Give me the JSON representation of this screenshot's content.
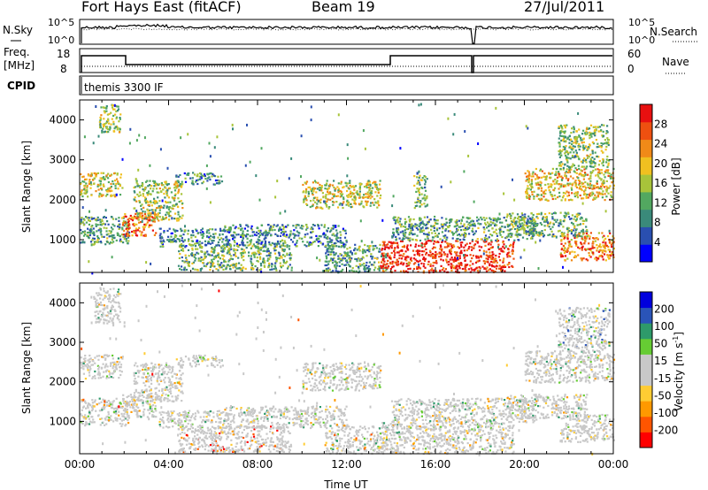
{
  "header": {
    "station": "Fort Hays East (fitACF)",
    "beam": "Beam 19",
    "date": "27/Jul/2011"
  },
  "panels": {
    "noise": {
      "left_label": "N.Sky",
      "right_label": "N.Search",
      "left_ticks": [
        "10^5",
        "10^0"
      ],
      "right_ticks": [
        "10^5",
        "10^0"
      ]
    },
    "freq": {
      "left_label_1": "Freq.",
      "left_label_2": "[MHz]",
      "left_ticks": [
        "18",
        "8"
      ],
      "right_label": "Nave",
      "right_ticks": [
        "60",
        "0"
      ]
    },
    "cpid": {
      "label": "CPID",
      "program": "themis 3300 IF"
    }
  },
  "colors": {
    "power": [
      "#0000ff",
      "#2a4fb0",
      "#3a8a7a",
      "#52a860",
      "#a8c43a",
      "#f0c020",
      "#f08a18",
      "#ee5010",
      "#e81010"
    ],
    "velocity": [
      "#ff0000",
      "#ff5500",
      "#ff9900",
      "#ffcc33",
      "#c8c8c8",
      "#c8c8c8",
      "#66cc33",
      "#2e9a6a",
      "#2a54b8",
      "#0000dd"
    ]
  },
  "chart_data": [
    {
      "type": "heatmap",
      "name": "power",
      "ylabel": "Slant Range [km]",
      "ylim": [
        180,
        4500
      ],
      "xlim": [
        0,
        24
      ],
      "yticks": [
        "1000",
        "2000",
        "3000",
        "4000"
      ],
      "colorbar": {
        "label": "Power [dB]",
        "ticks": [
          "4",
          "8",
          "12",
          "16",
          "20",
          "24",
          "28"
        ],
        "range": [
          0,
          32
        ]
      },
      "regions": [
        {
          "x": [
            0.0,
            2.2
          ],
          "y": [
            900,
            1600
          ],
          "level": 0.35
        },
        {
          "x": [
            0.0,
            1.9
          ],
          "y": [
            2100,
            2700
          ],
          "level": 0.55
        },
        {
          "x": [
            0.8,
            1.8
          ],
          "y": [
            3700,
            4400
          ],
          "level": 0.45
        },
        {
          "x": [
            1.9,
            3.4
          ],
          "y": [
            1100,
            1700
          ],
          "level": 0.8
        },
        {
          "x": [
            2.4,
            4.6
          ],
          "y": [
            1500,
            2500
          ],
          "level": 0.5
        },
        {
          "x": [
            3.5,
            6.5
          ],
          "y": [
            850,
            1300
          ],
          "level": 0.3
        },
        {
          "x": [
            4.3,
            6.4
          ],
          "y": [
            2400,
            2700
          ],
          "level": 0.3
        },
        {
          "x": [
            4.4,
            9.5
          ],
          "y": [
            250,
            900
          ],
          "level": 0.4
        },
        {
          "x": [
            6.5,
            12.0
          ],
          "y": [
            850,
            1400
          ],
          "level": 0.3
        },
        {
          "x": [
            10.0,
            13.5
          ],
          "y": [
            1800,
            2500
          ],
          "level": 0.55
        },
        {
          "x": [
            11.0,
            13.8
          ],
          "y": [
            200,
            900
          ],
          "level": 0.35
        },
        {
          "x": [
            13.5,
            19.5
          ],
          "y": [
            200,
            1000
          ],
          "level": 0.92
        },
        {
          "x": [
            14.0,
            20.5
          ],
          "y": [
            1000,
            1600
          ],
          "level": 0.35
        },
        {
          "x": [
            15.0,
            15.6
          ],
          "y": [
            1800,
            2700
          ],
          "level": 0.4
        },
        {
          "x": [
            19.2,
            22.8
          ],
          "y": [
            1100,
            1700
          ],
          "level": 0.4
        },
        {
          "x": [
            20.0,
            24.0
          ],
          "y": [
            2000,
            2800
          ],
          "level": 0.6
        },
        {
          "x": [
            21.5,
            23.8
          ],
          "y": [
            2800,
            3900
          ],
          "level": 0.45
        },
        {
          "x": [
            21.6,
            24.0
          ],
          "y": [
            500,
            1200
          ],
          "level": 0.75
        }
      ]
    },
    {
      "type": "heatmap",
      "name": "velocity",
      "ylabel": "Slant Range [km]",
      "ylim": [
        180,
        4500
      ],
      "xlim": [
        0,
        24
      ],
      "yticks": [
        "1000",
        "2000",
        "3000",
        "4000"
      ],
      "xlabel": "Time UT",
      "xticks": [
        "00:00",
        "04:00",
        "08:00",
        "12:00",
        "16:00",
        "20:00",
        "00:00"
      ],
      "colorbar": {
        "label": "Velocity [m s",
        "label_sup": "-1",
        "label_end": "]",
        "ticks": [
          "-200",
          "-100",
          "-50",
          "-15",
          "15",
          "50",
          "100",
          "200"
        ]
      },
      "regions": [
        {
          "x": [
            0.0,
            2.2
          ],
          "y": [
            900,
            1600
          ],
          "level": 0.5
        },
        {
          "x": [
            0.0,
            1.9
          ],
          "y": [
            2100,
            2700
          ],
          "level": 0.5
        },
        {
          "x": [
            0.6,
            1.8
          ],
          "y": [
            3500,
            4400
          ],
          "level": 0.5
        },
        {
          "x": [
            1.9,
            3.4
          ],
          "y": [
            1100,
            1700
          ],
          "level": 0.5
        },
        {
          "x": [
            2.4,
            4.6
          ],
          "y": [
            1500,
            2500
          ],
          "level": 0.5
        },
        {
          "x": [
            3.5,
            6.5
          ],
          "y": [
            850,
            1300
          ],
          "level": 0.5
        },
        {
          "x": [
            4.3,
            6.4
          ],
          "y": [
            2400,
            2700
          ],
          "level": 0.5
        },
        {
          "x": [
            4.4,
            9.5
          ],
          "y": [
            250,
            900
          ],
          "level": 0.3
        },
        {
          "x": [
            6.5,
            12.0
          ],
          "y": [
            850,
            1400
          ],
          "level": 0.5
        },
        {
          "x": [
            10.0,
            13.5
          ],
          "y": [
            1800,
            2500
          ],
          "level": 0.5
        },
        {
          "x": [
            11.0,
            13.8
          ],
          "y": [
            200,
            900
          ],
          "level": 0.45
        },
        {
          "x": [
            13.5,
            19.5
          ],
          "y": [
            200,
            1000
          ],
          "level": 0.5
        },
        {
          "x": [
            14.0,
            20.5
          ],
          "y": [
            1000,
            1600
          ],
          "level": 0.5
        },
        {
          "x": [
            19.2,
            22.8
          ],
          "y": [
            1100,
            1700
          ],
          "level": 0.5
        },
        {
          "x": [
            20.0,
            24.0
          ],
          "y": [
            2000,
            2800
          ],
          "level": 0.5
        },
        {
          "x": [
            21.5,
            23.8
          ],
          "y": [
            2800,
            3900
          ],
          "level": 0.6
        },
        {
          "x": [
            21.6,
            24.0
          ],
          "y": [
            500,
            1200
          ],
          "level": 0.5
        }
      ]
    }
  ]
}
